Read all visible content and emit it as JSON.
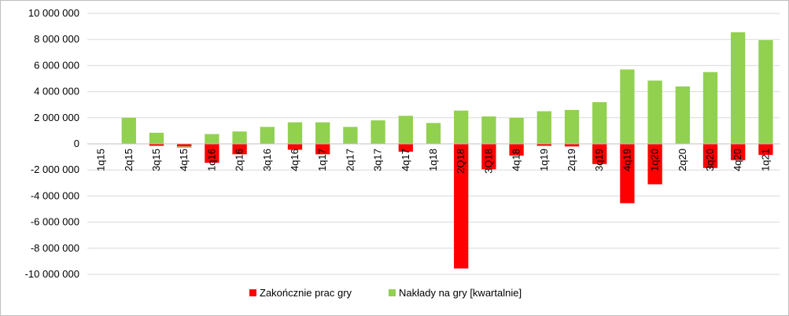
{
  "chart_data": {
    "type": "bar",
    "stacked": true,
    "categories": [
      "1q15",
      "2q15",
      "3q15",
      "4q15",
      "1q16",
      "2q16",
      "3q16",
      "4q16",
      "1q17",
      "2q17",
      "3q17",
      "4q17",
      "1q18",
      "2Q18",
      "3Q18",
      "4q18",
      "1q19",
      "2q19",
      "3q19",
      "4q19",
      "1q20",
      "2q20",
      "3q20",
      "4q20",
      "1q21"
    ],
    "series": [
      {
        "name": "Zakończnie prac gry",
        "color": "#ff0000",
        "values": [
          0,
          0,
          -150000,
          -200000,
          -1450000,
          -800000,
          0,
          -450000,
          -800000,
          0,
          0,
          -600000,
          0,
          -9550000,
          -1950000,
          -900000,
          -150000,
          -200000,
          -1550000,
          -4550000,
          -3100000,
          0,
          -1850000,
          -1250000,
          -850000
        ]
      },
      {
        "name": "Nakłady na gry [kwartalnie]",
        "color": "#92d050",
        "values": [
          0,
          2000000,
          850000,
          -100000,
          750000,
          950000,
          1300000,
          1650000,
          1650000,
          1300000,
          1800000,
          2150000,
          1600000,
          2550000,
          2100000,
          2000000,
          2500000,
          2600000,
          3200000,
          5700000,
          4850000,
          4400000,
          5500000,
          8550000,
          7950000
        ]
      }
    ],
    "yticks": [
      "10 000 000",
      "8 000 000",
      "6 000 000",
      "4 000 000",
      "2 000 000",
      "0",
      "-2 000 000",
      "-4 000 000",
      "-6 000 000",
      "-8 000 000",
      "-10 000 000"
    ],
    "ylim": [
      -10000000,
      10000000
    ],
    "ystep": 2000000,
    "grid": true,
    "legend": "bottom-center",
    "title": "",
    "xlabel": "",
    "ylabel": ""
  }
}
